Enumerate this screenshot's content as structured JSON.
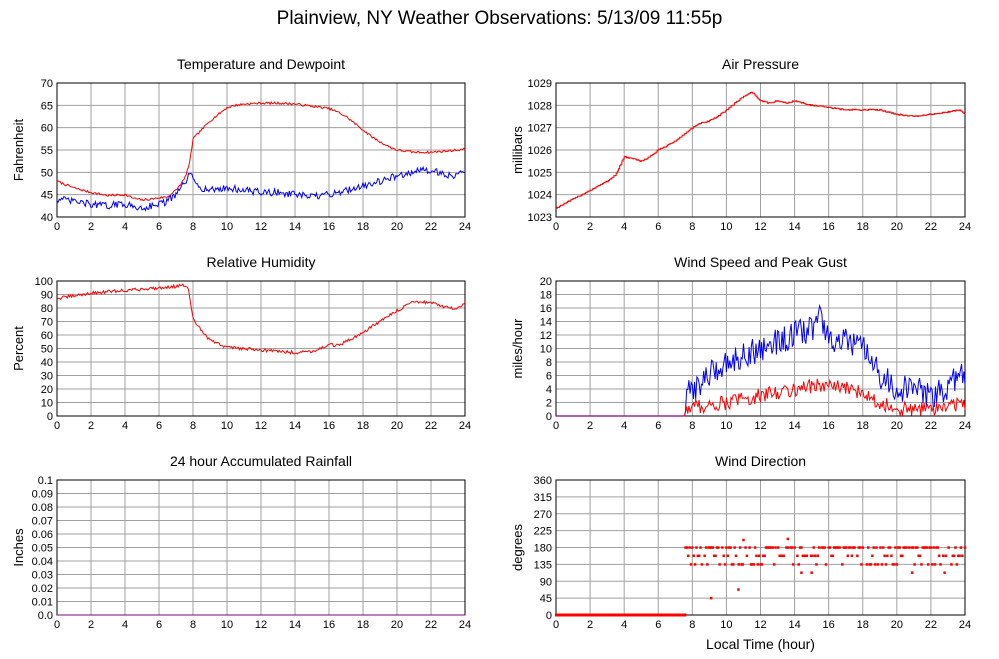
{
  "title": "Plainview, NY Weather Observations: 5/13/09 11:55p",
  "x_axis_caption": "Local Time (hour)",
  "colors": {
    "red": "#ff0000",
    "blue": "#0000ff",
    "grid": "#a0a0a0",
    "purple": "#800080"
  },
  "chart_data": [
    {
      "id": "temp",
      "type": "line",
      "title": "Temperature and Dewpoint",
      "ylabel": "Fahrenheit",
      "xlim": [
        0,
        24
      ],
      "ylim": [
        40,
        70
      ],
      "xticks": [
        "0",
        "2",
        "4",
        "6",
        "8",
        "10",
        "12",
        "14",
        "16",
        "18",
        "20",
        "22",
        "24"
      ],
      "yticks": [
        "40",
        "45",
        "50",
        "55",
        "60",
        "65",
        "70"
      ],
      "series": [
        {
          "color": "red",
          "noise": 0.25,
          "x": [
            0,
            1,
            2,
            3,
            4,
            4.5,
            5,
            5.5,
            6,
            6.5,
            7,
            7.5,
            7.8,
            8,
            8.5,
            9,
            9.5,
            10,
            10.5,
            11,
            12,
            13,
            14,
            15,
            16,
            16.5,
            17,
            17.5,
            18,
            18.5,
            19,
            19.5,
            20,
            21,
            22,
            23,
            24
          ],
          "y": [
            48,
            46.5,
            45.5,
            44.8,
            45,
            44.2,
            43.8,
            44,
            44.3,
            44.5,
            46,
            48.5,
            52,
            57.5,
            59.5,
            61.5,
            63,
            64.5,
            65,
            65.3,
            65.5,
            65.5,
            65.3,
            64.8,
            64.3,
            63.5,
            62.5,
            61,
            59.5,
            58,
            56.8,
            55.8,
            55,
            54.5,
            54.5,
            54.8,
            55.2
          ]
        },
        {
          "color": "blue",
          "noise": 0.8,
          "x": [
            0,
            1,
            2,
            3,
            4,
            4.5,
            5,
            5.5,
            6,
            6.5,
            7,
            7.5,
            7.8,
            8,
            8.5,
            9,
            10,
            11,
            12,
            13,
            14,
            15,
            16,
            16.5,
            17,
            18,
            19,
            20,
            21,
            22,
            23,
            23.5,
            24
          ],
          "y": [
            44,
            43.5,
            42.8,
            42.5,
            43,
            42.2,
            42,
            42.5,
            43,
            43.5,
            45,
            47.5,
            49.5,
            48.5,
            46.5,
            46,
            46.5,
            46,
            45.5,
            45.5,
            45,
            44.5,
            45,
            45.5,
            46,
            47,
            48,
            49.2,
            50.2,
            50.5,
            49.5,
            49.2,
            50.5
          ]
        }
      ]
    },
    {
      "id": "pressure",
      "type": "line",
      "title": "Air Pressure",
      "ylabel": "millibars",
      "xlim": [
        0,
        24
      ],
      "ylim": [
        1023,
        1029
      ],
      "xticks": [
        "0",
        "2",
        "4",
        "6",
        "8",
        "10",
        "12",
        "14",
        "16",
        "18",
        "20",
        "22",
        "24"
      ],
      "yticks": [
        "1023",
        "1024",
        "1025",
        "1026",
        "1027",
        "1028",
        "1029"
      ],
      "series": [
        {
          "color": "red",
          "noise": 0.03,
          "step": true,
          "x": [
            0,
            0.5,
            1,
            1.5,
            2,
            2.5,
            3,
            3.5,
            4,
            4.5,
            5,
            5.5,
            6,
            6.5,
            7,
            7.5,
            8,
            8.5,
            9,
            9.5,
            10,
            10.5,
            11,
            11.5,
            12,
            12.5,
            13,
            13.5,
            14,
            15,
            16,
            17,
            18,
            19,
            20,
            21,
            22,
            23,
            23.7,
            24
          ],
          "y": [
            1023.4,
            1023.6,
            1023.8,
            1024.0,
            1024.2,
            1024.4,
            1024.6,
            1024.9,
            1025.7,
            1025.6,
            1025.5,
            1025.7,
            1026.0,
            1026.2,
            1026.4,
            1026.7,
            1027.0,
            1027.2,
            1027.3,
            1027.5,
            1027.8,
            1028.1,
            1028.4,
            1028.6,
            1028.2,
            1028.1,
            1028.2,
            1028.1,
            1028.2,
            1028.0,
            1027.9,
            1027.8,
            1027.8,
            1027.8,
            1027.6,
            1027.5,
            1027.6,
            1027.7,
            1027.8,
            1027.6
          ]
        }
      ]
    },
    {
      "id": "humidity",
      "type": "line",
      "title": "Relative Humidity",
      "ylabel": "Percent",
      "xlim": [
        0,
        24
      ],
      "ylim": [
        0,
        100
      ],
      "xticks": [
        "0",
        "2",
        "4",
        "6",
        "8",
        "10",
        "12",
        "14",
        "16",
        "18",
        "20",
        "22",
        "24"
      ],
      "yticks": [
        "0",
        "10",
        "20",
        "30",
        "40",
        "50",
        "60",
        "70",
        "80",
        "90",
        "100"
      ],
      "series": [
        {
          "color": "red",
          "noise": 1.2,
          "x": [
            0,
            1,
            2,
            3,
            4,
            5,
            6,
            7,
            7.5,
            7.7,
            8,
            8.5,
            9,
            10,
            11,
            12,
            13,
            14,
            15,
            15.5,
            16,
            16.5,
            17,
            18,
            19,
            20,
            21,
            22,
            23,
            23.5,
            24
          ],
          "y": [
            87,
            89,
            91,
            92,
            93,
            94,
            95,
            96,
            97,
            95,
            72,
            63,
            56,
            51,
            50,
            49,
            48,
            47,
            48,
            50,
            53,
            52,
            55,
            62,
            70,
            78,
            85,
            84,
            80,
            79,
            83
          ]
        }
      ]
    },
    {
      "id": "wind",
      "type": "line",
      "title": "Wind Speed and Peak Gust",
      "ylabel": "miles/hour",
      "xlim": [
        0,
        24
      ],
      "ylim": [
        0,
        20
      ],
      "xticks": [
        "0",
        "2",
        "4",
        "6",
        "8",
        "10",
        "12",
        "14",
        "16",
        "18",
        "20",
        "22",
        "24"
      ],
      "yticks": [
        "0",
        "2",
        "4",
        "6",
        "8",
        "10",
        "12",
        "14",
        "16",
        "18",
        "20"
      ],
      "series": [
        {
          "color": "blue",
          "noise": 2.0,
          "floor": 0,
          "x": [
            0,
            7.5,
            7.7,
            8,
            9,
            10,
            11,
            12,
            13,
            14,
            15,
            15.5,
            16,
            17,
            18,
            19,
            20,
            21,
            22,
            23,
            23.5,
            24
          ],
          "y": [
            0,
            0,
            3,
            4,
            6,
            8,
            9,
            10,
            11,
            12,
            13,
            15,
            11,
            11,
            10,
            6,
            4,
            4,
            3,
            4,
            6,
            6
          ]
        },
        {
          "color": "red",
          "noise": 1.1,
          "floor": 0,
          "x": [
            0,
            7.5,
            7.7,
            8,
            9,
            10,
            11,
            12,
            13,
            14,
            15,
            16,
            17,
            18,
            19,
            20,
            21,
            22,
            23,
            24
          ],
          "y": [
            0,
            0,
            1,
            1.5,
            1.5,
            2,
            2.5,
            3,
            3.5,
            4,
            4.5,
            4.5,
            4,
            3.5,
            2,
            1,
            1,
            1,
            1.5,
            2
          ]
        }
      ]
    },
    {
      "id": "rain",
      "type": "line",
      "title": "24 hour Accumulated Rainfall",
      "ylabel": "Inches",
      "xlim": [
        0,
        24
      ],
      "ylim": [
        0,
        0.1
      ],
      "xticks": [
        "0",
        "2",
        "4",
        "6",
        "8",
        "10",
        "12",
        "14",
        "16",
        "18",
        "20",
        "22",
        "24"
      ],
      "yticks": [
        "0.0",
        "0.01",
        "0.02",
        "0.03",
        "0.04",
        "0.05",
        "0.06",
        "0.07",
        "0.08",
        "0.09",
        "0.1"
      ],
      "series": [
        {
          "color": "purple",
          "noise": 0,
          "x": [
            0,
            24
          ],
          "y": [
            0,
            0
          ]
        }
      ]
    },
    {
      "id": "direction",
      "type": "scatter",
      "title": "Wind Direction",
      "ylabel": "degrees",
      "xlim": [
        0,
        24
      ],
      "ylim": [
        0,
        360
      ],
      "xticks": [
        "0",
        "2",
        "4",
        "6",
        "8",
        "10",
        "12",
        "14",
        "16",
        "18",
        "20",
        "22",
        "24"
      ],
      "yticks": [
        "0",
        "45",
        "90",
        "135",
        "180",
        "225",
        "270",
        "315",
        "360"
      ],
      "series": [
        {
          "color": "red",
          "noise": 0,
          "calm_until": 7.6,
          "start": 7.6,
          "end": 24,
          "step": 0.08,
          "levels": [
            180,
            180,
            158,
            135,
            180,
            158,
            180,
            135,
            180,
            158
          ],
          "outliers": [
            {
              "x": 9.1,
              "y": 45
            },
            {
              "x": 10.7,
              "y": 68
            },
            {
              "x": 11.0,
              "y": 200
            },
            {
              "x": 13.6,
              "y": 203
            },
            {
              "x": 14.4,
              "y": 113
            },
            {
              "x": 15.0,
              "y": 113
            },
            {
              "x": 20.9,
              "y": 113
            },
            {
              "x": 22.8,
              "y": 113
            }
          ]
        }
      ]
    }
  ]
}
